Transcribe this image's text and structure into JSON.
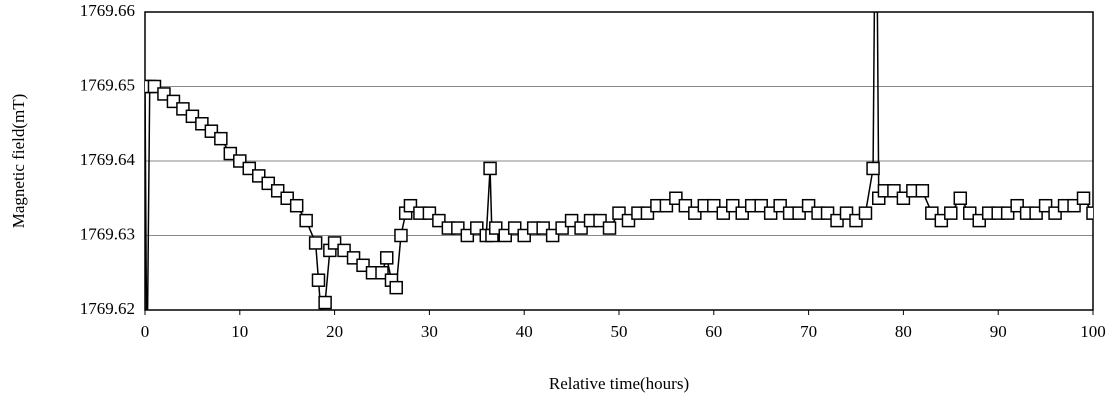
{
  "chart_data": {
    "type": "line",
    "x_label": "Relative time(hours)",
    "y_label": "Magnetic field(mT)",
    "xlim": [
      0,
      100
    ],
    "xticks": [
      0,
      10,
      20,
      30,
      40,
      50,
      60,
      70,
      80,
      90,
      100
    ],
    "ylim": [
      1769.62,
      1769.66
    ],
    "yticks": [
      1769.62,
      1769.63,
      1769.64,
      1769.65,
      1769.66
    ],
    "grid": true,
    "marker": "square",
    "series": [
      {
        "color": "#000000",
        "x": [
          0,
          0.2,
          0.5,
          1,
          2,
          3,
          4,
          5,
          6,
          7,
          8,
          9,
          10,
          11,
          12,
          13,
          14,
          15,
          16,
          17,
          18,
          18.3,
          18.6,
          19,
          19.5,
          20,
          21,
          22,
          23,
          24,
          25,
          25.5,
          26,
          26.5,
          27,
          27.5,
          28,
          29,
          30,
          31,
          32,
          33,
          34,
          35,
          36,
          36.4,
          36.6,
          37,
          38,
          39,
          40,
          41,
          42,
          43,
          44,
          45,
          46,
          47,
          48,
          49,
          50,
          51,
          52,
          53,
          54,
          55,
          56,
          57,
          58,
          59,
          60,
          61,
          62,
          63,
          64,
          65,
          66,
          67,
          68,
          69,
          70,
          71,
          72,
          73,
          74,
          75,
          76,
          76.8,
          77,
          77.2,
          77.4,
          78,
          79,
          80,
          81,
          82,
          83,
          84,
          85,
          86,
          87,
          88,
          89,
          90,
          91,
          92,
          93,
          94,
          95,
          96,
          97,
          98,
          99,
          100
        ],
        "values": [
          1769.65,
          1769.61,
          1769.65,
          1769.65,
          1769.649,
          1769.648,
          1769.647,
          1769.646,
          1769.645,
          1769.644,
          1769.643,
          1769.641,
          1769.64,
          1769.639,
          1769.638,
          1769.637,
          1769.636,
          1769.635,
          1769.634,
          1769.632,
          1769.629,
          1769.624,
          1769.619,
          1769.621,
          1769.628,
          1769.629,
          1769.628,
          1769.627,
          1769.626,
          1769.625,
          1769.625,
          1769.627,
          1769.624,
          1769.623,
          1769.63,
          1769.633,
          1769.634,
          1769.633,
          1769.633,
          1769.632,
          1769.631,
          1769.631,
          1769.63,
          1769.631,
          1769.63,
          1769.639,
          1769.63,
          1769.631,
          1769.63,
          1769.631,
          1769.63,
          1769.631,
          1769.631,
          1769.63,
          1769.631,
          1769.632,
          1769.631,
          1769.632,
          1769.632,
          1769.631,
          1769.633,
          1769.632,
          1769.633,
          1769.633,
          1769.634,
          1769.634,
          1769.635,
          1769.634,
          1769.633,
          1769.634,
          1769.634,
          1769.633,
          1769.634,
          1769.633,
          1769.634,
          1769.634,
          1769.633,
          1769.634,
          1769.633,
          1769.633,
          1769.634,
          1769.633,
          1769.633,
          1769.632,
          1769.633,
          1769.632,
          1769.633,
          1769.639,
          1769.67,
          1769.67,
          1769.635,
          1769.636,
          1769.636,
          1769.635,
          1769.636,
          1769.636,
          1769.633,
          1769.632,
          1769.633,
          1769.635,
          1769.633,
          1769.632,
          1769.633,
          1769.633,
          1769.633,
          1769.634,
          1769.633,
          1769.633,
          1769.634,
          1769.633,
          1769.634,
          1769.634,
          1769.635,
          1769.633
        ]
      }
    ]
  }
}
